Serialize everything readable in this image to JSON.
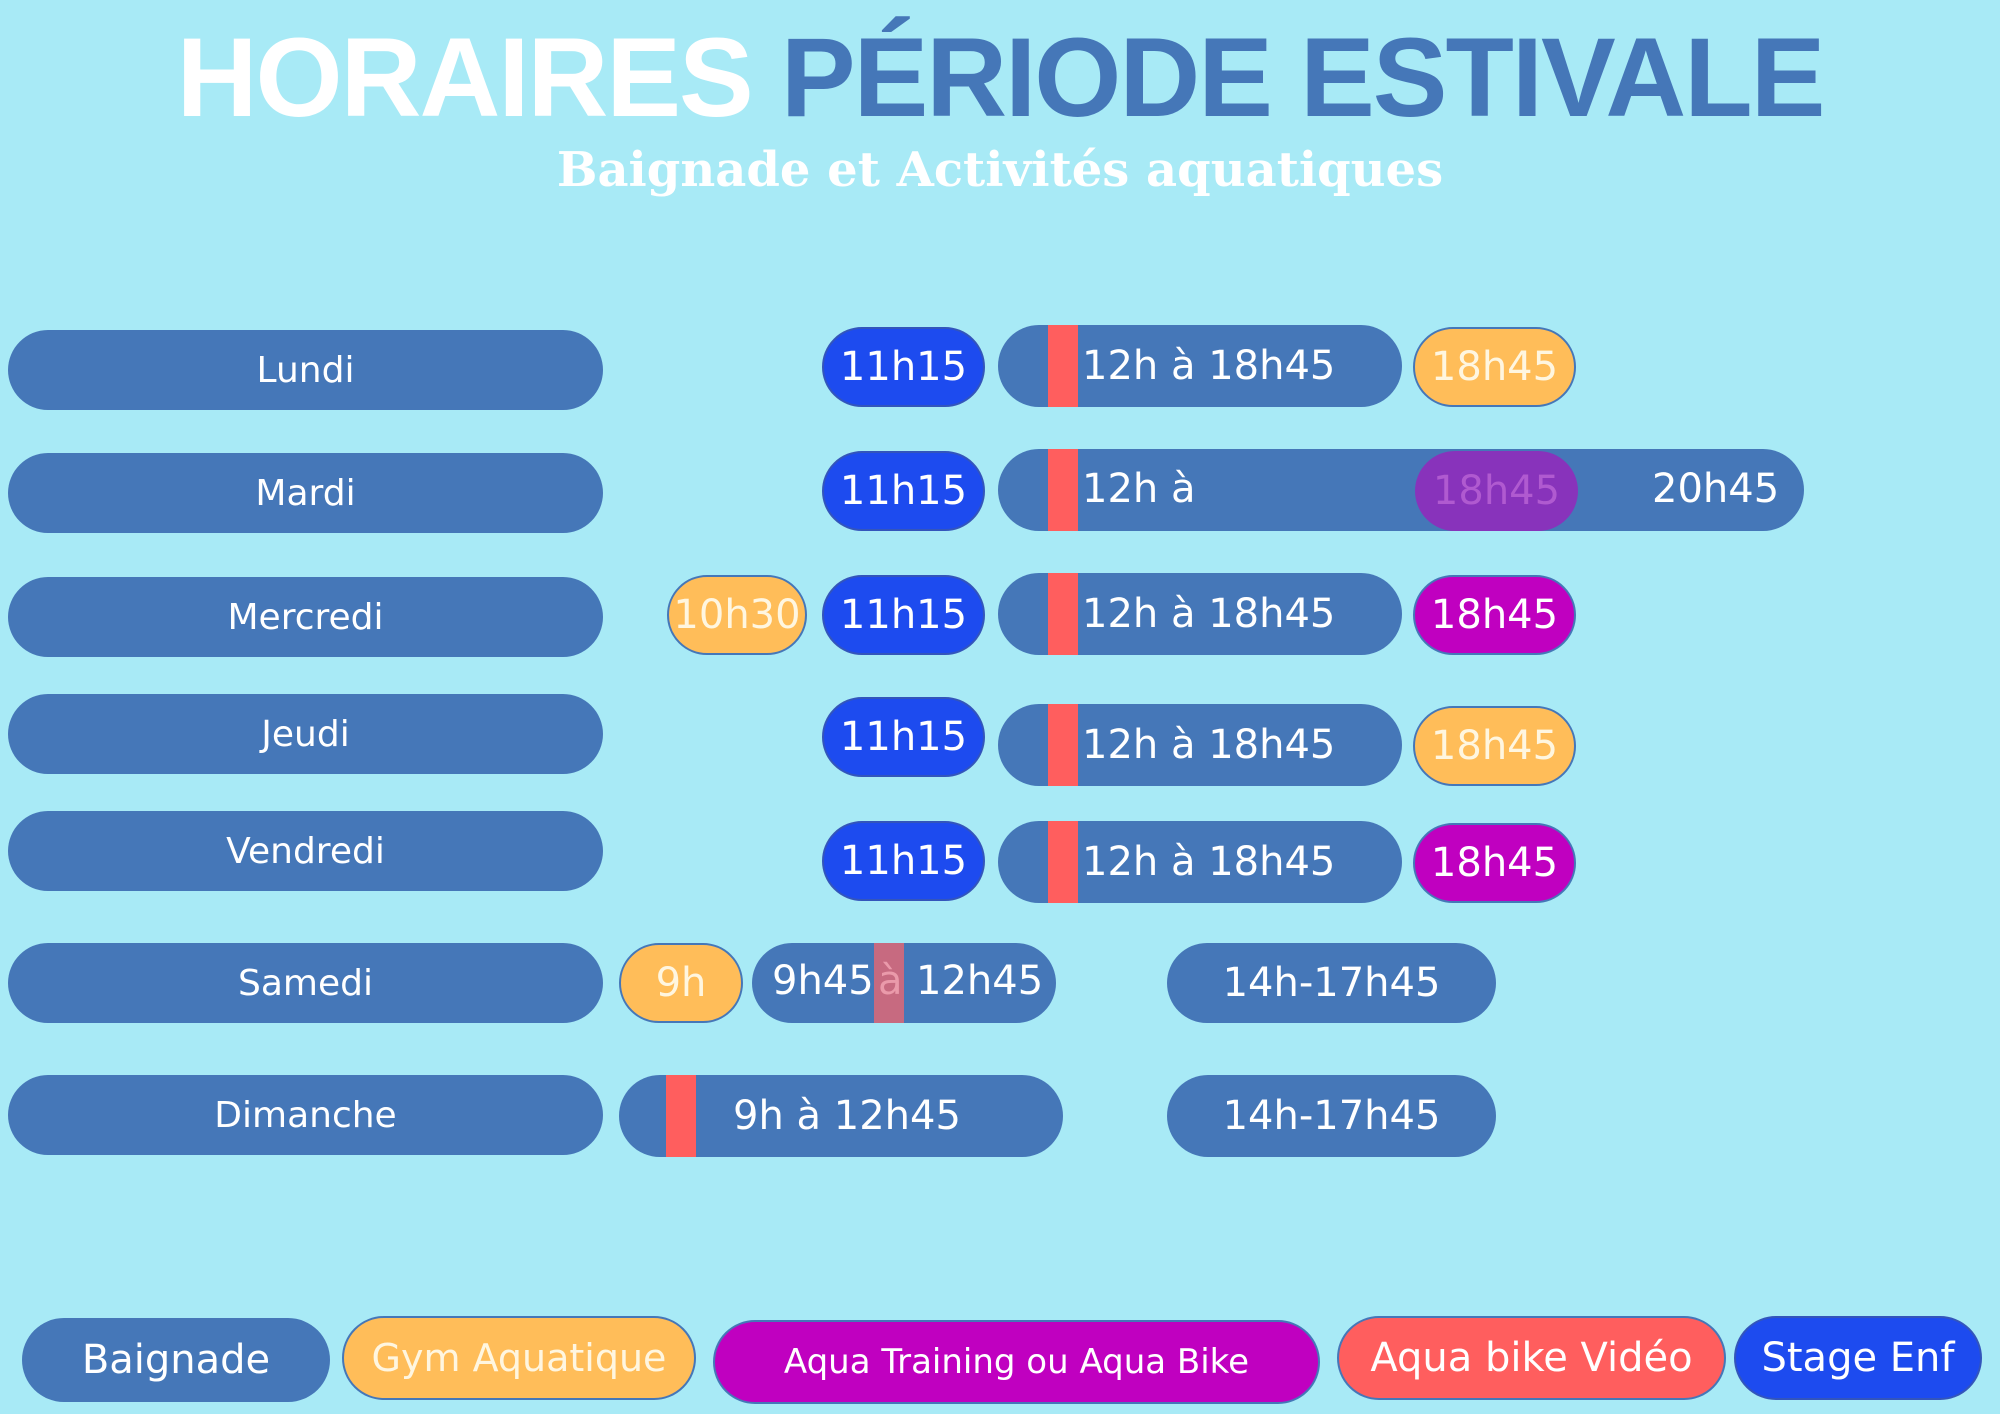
{
  "header": {
    "title_part1": "HORAIRES",
    "title_part2": "PÉRIODE ESTIVALE",
    "subtitle": "Baignade et Activités aquatiques"
  },
  "days": {
    "lundi": {
      "label": "Lundi",
      "stage": "11h15",
      "baignade": "12h à 18h45",
      "evening": "18h45"
    },
    "mardi": {
      "label": "Mardi",
      "stage": "11h15",
      "baignade_start": "12h à",
      "overlay": "18h45",
      "baignade_end": "20h45"
    },
    "mercredi": {
      "label": "Mercredi",
      "gym_morning": "10h30",
      "stage": "11h15",
      "baignade": "12h à 18h45",
      "evening": "18h45"
    },
    "jeudi": {
      "label": "Jeudi",
      "stage": "11h15",
      "baignade": "12h à 18h45",
      "evening": "18h45"
    },
    "vendredi": {
      "label": "Vendredi",
      "stage": "11h15",
      "baignade": "12h à 18h45",
      "evening": "18h45"
    },
    "samedi": {
      "label": "Samedi",
      "gym_morning": "9h",
      "morning_start": "9h45",
      "morning_sep": "à",
      "morning_end": "12h45",
      "afternoon": "14h-17h45"
    },
    "dimanche": {
      "label": "Dimanche",
      "morning": "9h à 12h45",
      "afternoon": "14h-17h45"
    }
  },
  "legend": {
    "baignade": "Baignade",
    "gym": "Gym Aquatique",
    "aqua_training": "Aqua Training ou Aqua Bike",
    "aqua_bike_video": "Aqua bike Vidéo",
    "stage": "Stage Enf"
  },
  "colors": {
    "background": "#a8eaf6",
    "baignade": "#4577b8",
    "gym_aquatique": "#ffbd59",
    "aqua_training": "#c000c0",
    "aqua_bike_video": "#ff5e5e",
    "stage_enfants": "#1d4bef"
  }
}
